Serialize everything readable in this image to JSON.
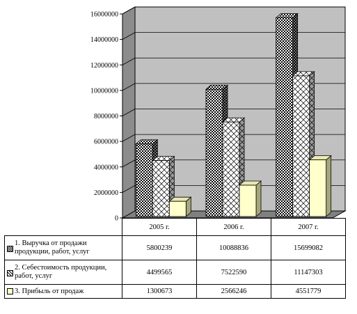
{
  "colors": {
    "plot_back": "#c0c0c0",
    "plot_side": "#8c8c8c",
    "floor": "#808080",
    "series_3_fill": "#ffffcc"
  },
  "chart_data": {
    "type": "bar",
    "subtype": "3d-clustered-column",
    "categories": [
      "2005 г.",
      "2006 г.",
      "2007 г."
    ],
    "series": [
      {
        "name": "1. Выручка от продажи продукции, работ, услуг",
        "pattern": "dense-checker",
        "values": [
          5800239,
          10088836,
          15699082
        ]
      },
      {
        "name": "2. Себестоимость продукции, работ, услуг",
        "pattern": "diagonal-lattice",
        "values": [
          4499565,
          7522590,
          11147303
        ]
      },
      {
        "name": "3. Прибыль от продаж",
        "pattern": "solid-light-yellow",
        "values": [
          1300673,
          2566246,
          4551779
        ]
      }
    ],
    "ylim": [
      0,
      16000000
    ],
    "yticks": [
      "0",
      "2000000",
      "4000000",
      "6000000",
      "8000000",
      "10000000",
      "12000000",
      "14000000",
      "16000000"
    ],
    "grid": true,
    "legend": "data-table-below"
  }
}
